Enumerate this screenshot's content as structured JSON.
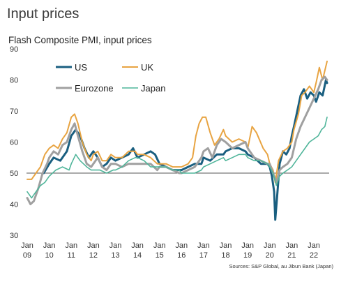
{
  "title": "Input prices",
  "subtitle": "Flash Composite PMI, input prices",
  "source": "Sources: S&P Global, au Jibun Bank (Japan)",
  "chart_data": {
    "type": "line",
    "title": "Input prices",
    "subtitle": "Flash Composite PMI, input prices",
    "xlabel": "",
    "ylabel": "",
    "ylim": [
      30,
      90
    ],
    "xlim": [
      2009.0,
      2022.67
    ],
    "yticks": [
      30,
      40,
      50,
      60,
      70,
      80,
      90
    ],
    "xticks": [
      {
        "year": 2009,
        "label1": "Jan",
        "label2": "09"
      },
      {
        "year": 2010,
        "label1": "Jan",
        "label2": "10"
      },
      {
        "year": 2011,
        "label1": "Jan",
        "label2": "11"
      },
      {
        "year": 2012,
        "label1": "Jan",
        "label2": "12"
      },
      {
        "year": 2013,
        "label1": "Jan",
        "label2": "13"
      },
      {
        "year": 2014,
        "label1": "Jan",
        "label2": "14"
      },
      {
        "year": 2015,
        "label1": "Jan",
        "label2": "15"
      },
      {
        "year": 2016,
        "label1": "Jan",
        "label2": "16"
      },
      {
        "year": 2017,
        "label1": "Jan",
        "label2": "17"
      },
      {
        "year": 2018,
        "label1": "Jan",
        "label2": "18"
      },
      {
        "year": 2019,
        "label1": "Jan",
        "label2": "19"
      },
      {
        "year": 2020,
        "label1": "Jan",
        "label2": "20"
      },
      {
        "year": 2021,
        "label1": "Jan",
        "label2": "21"
      },
      {
        "year": 2022,
        "label1": "Jan",
        "label2": "22"
      }
    ],
    "reference_line": 50,
    "grid": false,
    "legend_position": "top-left",
    "series": [
      {
        "name": "US",
        "color": "#1a5f80",
        "width": 3,
        "points": [
          [
            2009.75,
            50
          ],
          [
            2010.0,
            53
          ],
          [
            2010.2,
            55
          ],
          [
            2010.5,
            54
          ],
          [
            2010.8,
            57
          ],
          [
            2011.0,
            62
          ],
          [
            2011.2,
            64
          ],
          [
            2011.4,
            62
          ],
          [
            2011.6,
            58
          ],
          [
            2011.8,
            55
          ],
          [
            2012.0,
            57
          ],
          [
            2012.2,
            55
          ],
          [
            2012.4,
            52
          ],
          [
            2012.6,
            53
          ],
          [
            2012.8,
            55
          ],
          [
            2013.0,
            54
          ],
          [
            2013.3,
            55
          ],
          [
            2013.6,
            56
          ],
          [
            2013.8,
            58
          ],
          [
            2014.0,
            55
          ],
          [
            2014.3,
            56
          ],
          [
            2014.6,
            57
          ],
          [
            2014.8,
            56
          ],
          [
            2015.0,
            53
          ],
          [
            2015.3,
            52
          ],
          [
            2015.6,
            51
          ],
          [
            2015.9,
            51
          ],
          [
            2016.0,
            51
          ],
          [
            2016.3,
            52
          ],
          [
            2016.6,
            53
          ],
          [
            2016.9,
            53
          ],
          [
            2017.0,
            55
          ],
          [
            2017.3,
            54
          ],
          [
            2017.6,
            56
          ],
          [
            2017.9,
            56
          ],
          [
            2018.0,
            57
          ],
          [
            2018.3,
            58
          ],
          [
            2018.6,
            58
          ],
          [
            2018.9,
            57
          ],
          [
            2019.0,
            56
          ],
          [
            2019.3,
            55
          ],
          [
            2019.6,
            53
          ],
          [
            2019.9,
            53
          ],
          [
            2020.0,
            52
          ],
          [
            2020.1,
            49
          ],
          [
            2020.2,
            44
          ],
          [
            2020.25,
            35
          ],
          [
            2020.33,
            42
          ],
          [
            2020.45,
            53
          ],
          [
            2020.6,
            57
          ],
          [
            2020.75,
            56
          ],
          [
            2020.9,
            58
          ],
          [
            2021.0,
            62
          ],
          [
            2021.1,
            65
          ],
          [
            2021.25,
            70
          ],
          [
            2021.4,
            75
          ],
          [
            2021.55,
            77
          ],
          [
            2021.7,
            74
          ],
          [
            2021.85,
            76
          ],
          [
            2022.0,
            75
          ],
          [
            2022.1,
            73
          ],
          [
            2022.25,
            76
          ],
          [
            2022.4,
            75
          ],
          [
            2022.55,
            80
          ],
          [
            2022.6,
            79
          ]
        ]
      },
      {
        "name": "UK",
        "color": "#e8a442",
        "width": 2,
        "points": [
          [
            2009.0,
            48
          ],
          [
            2009.2,
            48
          ],
          [
            2009.4,
            50
          ],
          [
            2009.6,
            52
          ],
          [
            2009.8,
            56
          ],
          [
            2010.0,
            58
          ],
          [
            2010.2,
            59
          ],
          [
            2010.4,
            58
          ],
          [
            2010.6,
            61
          ],
          [
            2010.8,
            63
          ],
          [
            2011.0,
            68
          ],
          [
            2011.15,
            69
          ],
          [
            2011.3,
            66
          ],
          [
            2011.5,
            60
          ],
          [
            2011.7,
            56
          ],
          [
            2011.9,
            54
          ],
          [
            2012.0,
            56
          ],
          [
            2012.2,
            57
          ],
          [
            2012.4,
            54
          ],
          [
            2012.6,
            54
          ],
          [
            2012.8,
            56
          ],
          [
            2013.0,
            55
          ],
          [
            2013.3,
            55
          ],
          [
            2013.6,
            57
          ],
          [
            2013.9,
            57
          ],
          [
            2014.0,
            56
          ],
          [
            2014.3,
            56
          ],
          [
            2014.6,
            55
          ],
          [
            2014.9,
            53
          ],
          [
            2015.0,
            53
          ],
          [
            2015.3,
            53
          ],
          [
            2015.6,
            52
          ],
          [
            2015.9,
            52
          ],
          [
            2016.0,
            52
          ],
          [
            2016.3,
            53
          ],
          [
            2016.5,
            55
          ],
          [
            2016.65,
            62
          ],
          [
            2016.8,
            66
          ],
          [
            2016.95,
            68
          ],
          [
            2017.1,
            68
          ],
          [
            2017.3,
            63
          ],
          [
            2017.5,
            59
          ],
          [
            2017.7,
            61
          ],
          [
            2017.9,
            64
          ],
          [
            2018.0,
            62
          ],
          [
            2018.3,
            60
          ],
          [
            2018.6,
            61
          ],
          [
            2018.9,
            60
          ],
          [
            2019.0,
            58
          ],
          [
            2019.2,
            65
          ],
          [
            2019.4,
            63
          ],
          [
            2019.7,
            58
          ],
          [
            2019.9,
            56
          ],
          [
            2020.0,
            53
          ],
          [
            2020.15,
            51
          ],
          [
            2020.25,
            47
          ],
          [
            2020.4,
            54
          ],
          [
            2020.6,
            57
          ],
          [
            2020.8,
            58
          ],
          [
            2021.0,
            60
          ],
          [
            2021.1,
            64
          ],
          [
            2021.3,
            69
          ],
          [
            2021.45,
            75
          ],
          [
            2021.6,
            76
          ],
          [
            2021.8,
            78
          ],
          [
            2022.0,
            76
          ],
          [
            2022.1,
            79
          ],
          [
            2022.25,
            84
          ],
          [
            2022.4,
            80
          ],
          [
            2022.6,
            86
          ]
        ]
      },
      {
        "name": "Eurozone",
        "color": "#a0a0a0",
        "width": 3,
        "points": [
          [
            2009.0,
            42
          ],
          [
            2009.15,
            40
          ],
          [
            2009.3,
            41
          ],
          [
            2009.5,
            45
          ],
          [
            2009.7,
            50
          ],
          [
            2009.9,
            53
          ],
          [
            2010.0,
            55
          ],
          [
            2010.2,
            57
          ],
          [
            2010.4,
            56
          ],
          [
            2010.6,
            59
          ],
          [
            2010.8,
            60
          ],
          [
            2011.0,
            64
          ],
          [
            2011.15,
            66
          ],
          [
            2011.3,
            62
          ],
          [
            2011.5,
            57
          ],
          [
            2011.7,
            53
          ],
          [
            2011.9,
            52
          ],
          [
            2012.0,
            53
          ],
          [
            2012.2,
            55
          ],
          [
            2012.4,
            52
          ],
          [
            2012.6,
            51
          ],
          [
            2012.8,
            53
          ],
          [
            2013.0,
            53
          ],
          [
            2013.3,
            52
          ],
          [
            2013.6,
            53
          ],
          [
            2013.9,
            53
          ],
          [
            2014.0,
            53
          ],
          [
            2014.3,
            53
          ],
          [
            2014.6,
            53
          ],
          [
            2014.9,
            51
          ],
          [
            2015.0,
            52
          ],
          [
            2015.3,
            52
          ],
          [
            2015.6,
            51
          ],
          [
            2015.9,
            50
          ],
          [
            2016.0,
            50
          ],
          [
            2016.3,
            51
          ],
          [
            2016.6,
            52
          ],
          [
            2016.9,
            55
          ],
          [
            2017.0,
            57
          ],
          [
            2017.2,
            58
          ],
          [
            2017.4,
            55
          ],
          [
            2017.6,
            59
          ],
          [
            2017.8,
            61
          ],
          [
            2018.0,
            60
          ],
          [
            2018.3,
            58
          ],
          [
            2018.6,
            59
          ],
          [
            2018.9,
            60
          ],
          [
            2019.0,
            58
          ],
          [
            2019.3,
            55
          ],
          [
            2019.6,
            54
          ],
          [
            2019.9,
            53
          ],
          [
            2020.0,
            53
          ],
          [
            2020.15,
            50
          ],
          [
            2020.3,
            47
          ],
          [
            2020.45,
            51
          ],
          [
            2020.6,
            52
          ],
          [
            2020.8,
            53
          ],
          [
            2021.0,
            55
          ],
          [
            2021.2,
            61
          ],
          [
            2021.4,
            65
          ],
          [
            2021.6,
            68
          ],
          [
            2021.8,
            71
          ],
          [
            2022.0,
            74
          ],
          [
            2022.2,
            77
          ],
          [
            2022.35,
            80
          ],
          [
            2022.5,
            81
          ],
          [
            2022.6,
            80
          ]
        ]
      },
      {
        "name": "Japan",
        "color": "#4fb59a",
        "width": 1.6,
        "points": [
          [
            2009.0,
            44
          ],
          [
            2009.2,
            42
          ],
          [
            2009.4,
            44
          ],
          [
            2009.6,
            46
          ],
          [
            2009.8,
            47
          ],
          [
            2010.0,
            49
          ],
          [
            2010.3,
            51
          ],
          [
            2010.6,
            52
          ],
          [
            2010.9,
            51
          ],
          [
            2011.0,
            53
          ],
          [
            2011.2,
            56
          ],
          [
            2011.4,
            54
          ],
          [
            2011.7,
            52
          ],
          [
            2011.9,
            51
          ],
          [
            2012.0,
            51
          ],
          [
            2012.3,
            51
          ],
          [
            2012.6,
            50
          ],
          [
            2012.9,
            51
          ],
          [
            2013.0,
            51
          ],
          [
            2013.3,
            52
          ],
          [
            2013.6,
            54
          ],
          [
            2013.9,
            55
          ],
          [
            2014.0,
            55
          ],
          [
            2014.3,
            54
          ],
          [
            2014.6,
            52
          ],
          [
            2014.9,
            52
          ],
          [
            2015.0,
            52
          ],
          [
            2015.3,
            52
          ],
          [
            2015.6,
            51
          ],
          [
            2015.9,
            51
          ],
          [
            2016.0,
            50
          ],
          [
            2016.3,
            50
          ],
          [
            2016.6,
            50
          ],
          [
            2016.9,
            51
          ],
          [
            2017.0,
            52
          ],
          [
            2017.3,
            53
          ],
          [
            2017.6,
            54
          ],
          [
            2017.9,
            55
          ],
          [
            2018.0,
            54
          ],
          [
            2018.3,
            55
          ],
          [
            2018.6,
            56
          ],
          [
            2018.9,
            56
          ],
          [
            2019.0,
            55
          ],
          [
            2019.3,
            54
          ],
          [
            2019.6,
            54
          ],
          [
            2019.9,
            53
          ],
          [
            2020.0,
            52
          ],
          [
            2020.15,
            50
          ],
          [
            2020.3,
            46
          ],
          [
            2020.45,
            49
          ],
          [
            2020.6,
            50
          ],
          [
            2020.8,
            51
          ],
          [
            2021.0,
            52
          ],
          [
            2021.2,
            54
          ],
          [
            2021.4,
            56
          ],
          [
            2021.6,
            58
          ],
          [
            2021.8,
            60
          ],
          [
            2022.0,
            61
          ],
          [
            2022.2,
            62
          ],
          [
            2022.35,
            64
          ],
          [
            2022.5,
            65
          ],
          [
            2022.6,
            68
          ]
        ]
      }
    ]
  }
}
